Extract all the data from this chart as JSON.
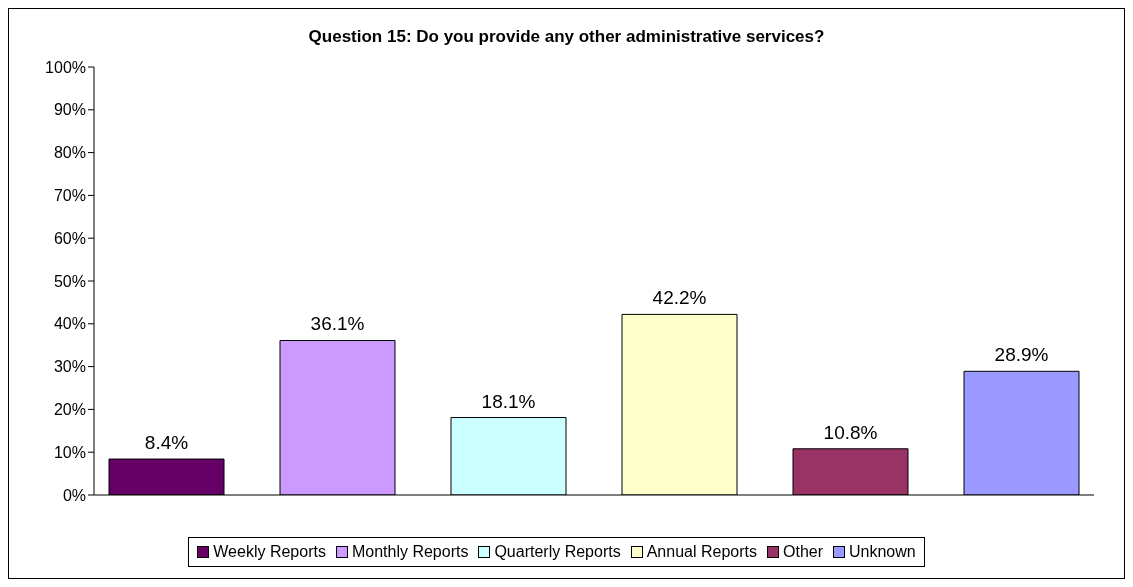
{
  "chart_data": {
    "type": "bar",
    "title": "Question 15: Do you provide any other administrative services?",
    "categories": [
      null
    ],
    "series": [
      {
        "name": "Weekly Reports",
        "color": "#660066",
        "values": [
          8.4
        ],
        "value_labels": [
          "8.4%"
        ]
      },
      {
        "name": "Monthly Reports",
        "color": "#cc99ff",
        "values": [
          36.1
        ],
        "value_labels": [
          "36.1%"
        ]
      },
      {
        "name": "Quarterly Reports",
        "color": "#ccffff",
        "values": [
          18.1
        ],
        "value_labels": [
          "18.1%"
        ]
      },
      {
        "name": "Annual Reports",
        "color": "#ffffcc",
        "values": [
          42.2
        ],
        "value_labels": [
          "42.2%"
        ]
      },
      {
        "name": "Other",
        "color": "#993366",
        "values": [
          10.8
        ],
        "value_labels": [
          "10.8%"
        ]
      },
      {
        "name": "Unknown",
        "color": "#9999ff",
        "values": [
          28.9
        ],
        "value_labels": [
          "28.9%"
        ]
      }
    ],
    "ylim": [
      0,
      100
    ],
    "yticks": [
      {
        "value": 0,
        "label": "0%"
      },
      {
        "value": 10,
        "label": "10%"
      },
      {
        "value": 20,
        "label": "20%"
      },
      {
        "value": 30,
        "label": "30%"
      },
      {
        "value": 40,
        "label": "40%"
      },
      {
        "value": 50,
        "label": "50%"
      },
      {
        "value": 60,
        "label": "60%"
      },
      {
        "value": 70,
        "label": "70%"
      },
      {
        "value": 80,
        "label": "80%"
      },
      {
        "value": 90,
        "label": "90%"
      },
      {
        "value": 100,
        "label": "100%"
      }
    ],
    "grid": false,
    "legend": "bottom"
  }
}
